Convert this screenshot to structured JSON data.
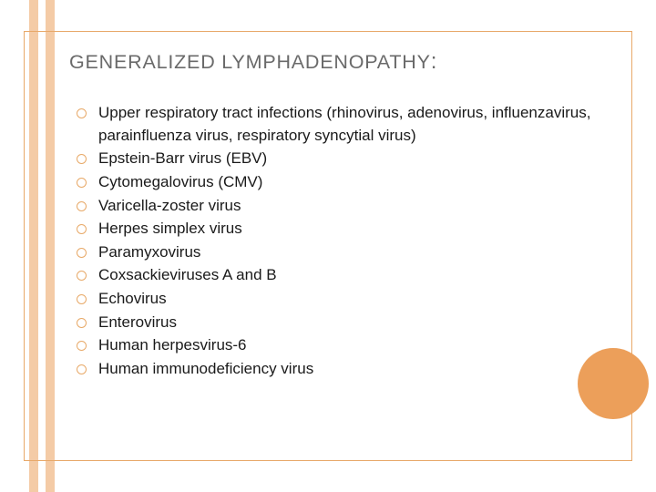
{
  "title_text": "GENERALIZED LYMPHADENOPATHY",
  "title_suffix": ":",
  "title_fontsize": 21.5,
  "title_color": "#6a6a6a",
  "item_fontsize": 17,
  "item_color": "#1a1a1a",
  "bullet_border_color": "#e8a968",
  "frame_border_color": "#e8a96a",
  "stripe_color": "#f4cba6",
  "circle_color": "#ec9f5a",
  "background_color": "#ffffff",
  "items": [
    "Upper respiratory tract infections (rhinovirus, adenovirus, influenzavirus, parainfluenza virus, respiratory syncytial virus)",
    "Epstein-Barr virus (EBV)",
    "Cytomegalovirus (CMV)",
    "Varicella-zoster virus",
    "Herpes simplex virus",
    "Paramyxovirus",
    "Coxsackieviruses A and B",
    "Echovirus",
    "Enterovirus",
    "Human herpesvirus-6",
    "Human immunodeficiency virus"
  ]
}
